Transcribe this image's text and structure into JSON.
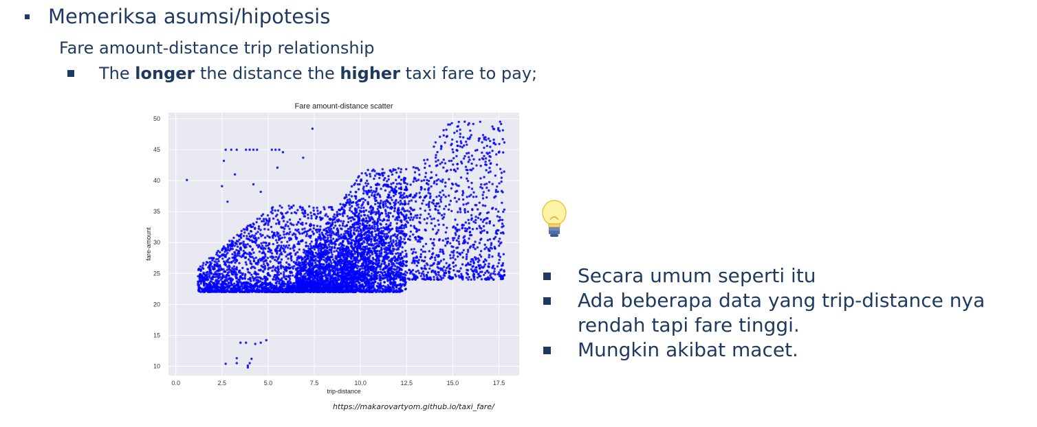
{
  "slide": {
    "bullet_main": "Memeriksa asumsi/hipotesis",
    "subheading": "Fare amount-distance trip relationship",
    "hypothesis": {
      "pre": "The ",
      "bold1": "longer",
      "mid": " the distance the ",
      "bold2": "higher",
      "post": " taxi fare to pay;"
    },
    "source": "https://makarovartyom.github.io/taxi_fare/",
    "bulb_icon": "lightbulb-icon",
    "notes": [
      "Secara umum seperti itu",
      "Ada beberapa data yang trip-distance nya rendah tapi fare tinggi.",
      "Mungkin akibat macet."
    ]
  },
  "chart_data": {
    "type": "scatter",
    "title": "Fare amount-distance scatter",
    "xlabel": "trip-distance",
    "ylabel": "fare-amount",
    "xlim": [
      -0.4,
      18.6
    ],
    "ylim": [
      8.5,
      51
    ],
    "xticks": [
      0.0,
      2.5,
      5.0,
      7.5,
      10.0,
      12.5,
      15.0,
      17.5
    ],
    "xtick_labels": [
      "0.0",
      "2.5",
      "5.0",
      "7.5",
      "10.0",
      "12.5",
      "15.0",
      "17.5"
    ],
    "yticks": [
      10,
      15,
      20,
      25,
      30,
      35,
      40,
      45,
      50
    ],
    "ytick_labels": [
      "10",
      "15",
      "20",
      "25",
      "30",
      "35",
      "40",
      "45",
      "50"
    ],
    "grid": true,
    "background": "#e8e9f1",
    "point_color": "#0000ff",
    "outliers": [
      [
        0.6,
        40.1
      ],
      [
        2.5,
        39.1
      ],
      [
        2.6,
        43.2
      ],
      [
        2.7,
        45.0
      ],
      [
        2.8,
        36.6
      ],
      [
        3.0,
        45.0
      ],
      [
        3.3,
        45.0
      ],
      [
        3.8,
        45.0
      ],
      [
        4.0,
        45.0
      ],
      [
        4.2,
        45.0
      ],
      [
        4.4,
        45.0
      ],
      [
        4.6,
        38.2
      ],
      [
        5.2,
        45.0
      ],
      [
        5.4,
        45.0
      ],
      [
        5.6,
        45.0
      ],
      [
        5.8,
        44.6
      ],
      [
        6.9,
        43.7
      ],
      [
        7.4,
        48.4
      ],
      [
        4.2,
        39.4
      ],
      [
        5.5,
        42.1
      ],
      [
        3.2,
        41.0
      ],
      [
        2.7,
        10.4
      ],
      [
        3.3,
        10.5
      ],
      [
        3.3,
        11.3
      ],
      [
        3.5,
        13.8
      ],
      [
        3.8,
        13.8
      ],
      [
        3.9,
        9.8
      ],
      [
        4.0,
        10.5
      ],
      [
        4.1,
        11.2
      ],
      [
        4.3,
        13.6
      ],
      [
        4.6,
        13.8
      ],
      [
        4.9,
        14.2
      ],
      [
        3.9,
        10.1
      ]
    ],
    "clusters": [
      {
        "x_range": [
          1.2,
          8.5
        ],
        "y_range": [
          22.0,
          36.0
        ],
        "n": 1700
      },
      {
        "x_range": [
          6.5,
          12.5
        ],
        "y_range": [
          22.0,
          42.0
        ],
        "n": 2200
      },
      {
        "x_range": [
          9.0,
          17.8
        ],
        "y_range": [
          24.0,
          49.6
        ],
        "n": 1500
      },
      {
        "x_range": [
          8.5,
          10.5
        ],
        "y_range": [
          22.0,
          35.0
        ],
        "n": 500
      },
      {
        "x_range": [
          1.5,
          9.0
        ],
        "y_range": [
          22.0,
          23.5
        ],
        "n": 400
      }
    ]
  }
}
